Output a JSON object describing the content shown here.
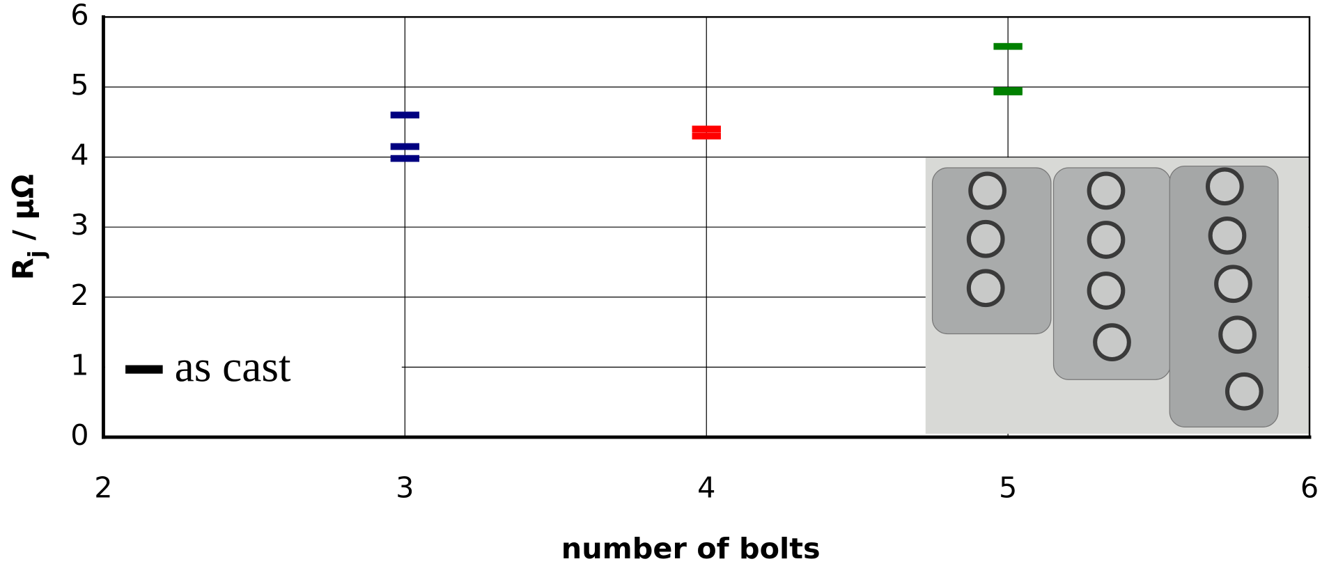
{
  "chart_data": {
    "type": "scatter",
    "x_label": "number of bolts",
    "y_label": [
      "R",
      "j",
      " / μΩ"
    ],
    "series": [
      {
        "name": "as cast",
        "color": "#000000",
        "x": [
          3,
          3,
          3,
          4,
          4,
          5,
          5,
          5
        ],
        "values": [
          4.6,
          4.15,
          3.98,
          4.4,
          4.3,
          5.58,
          4.95,
          4.93
        ],
        "colors": [
          "#000080",
          "#000080",
          "#000080",
          "#ff0000",
          "#ff0000",
          "#008000",
          "#008000",
          "#008000"
        ]
      }
    ],
    "xlim": [
      2,
      6
    ],
    "xticks": [
      2,
      3,
      4,
      5,
      6
    ],
    "ylim": [
      0,
      6
    ],
    "yticks": [
      0,
      1,
      2,
      3,
      4,
      5,
      6
    ],
    "grid": true,
    "legend": "lower left"
  }
}
